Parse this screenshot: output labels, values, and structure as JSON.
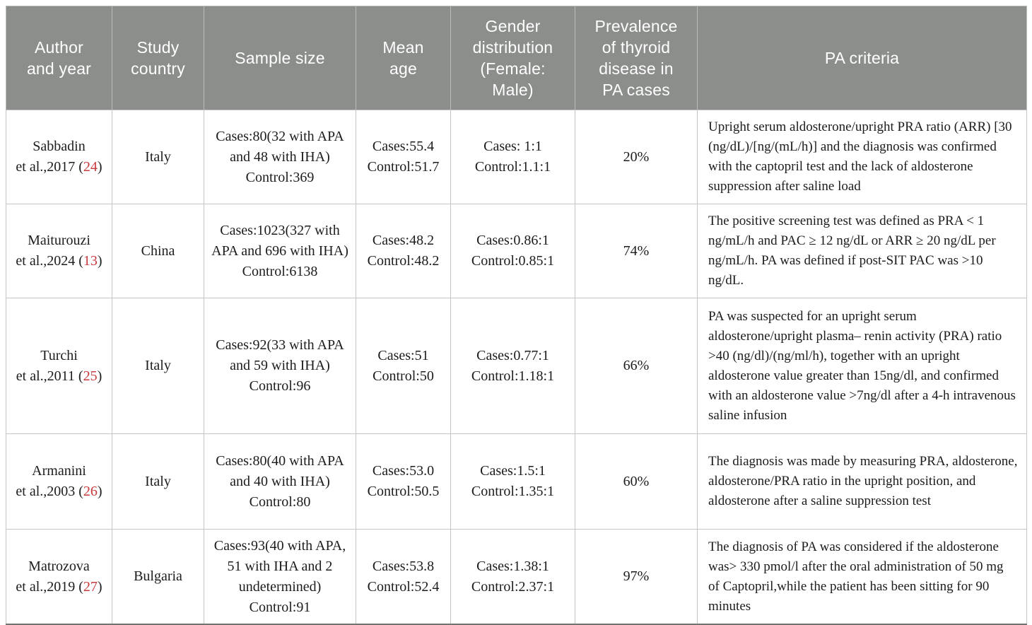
{
  "colors": {
    "header_background": "#8b8e8b",
    "header_text": "#ffffff",
    "reference_red": "#c83a3c",
    "body_text": "#1c1c1c",
    "cell_border": "#c3c6c3"
  },
  "table": {
    "columns": [
      {
        "id": "author-and-year",
        "label": "Author and year",
        "lines": [
          "Author",
          "and year"
        ]
      },
      {
        "id": "study-country",
        "label": "Study country",
        "lines": [
          "Study",
          "country"
        ]
      },
      {
        "id": "sample-size",
        "label": "Sample size",
        "lines": [
          "Sample size"
        ]
      },
      {
        "id": "mean-age",
        "label": "Mean age",
        "lines": [
          "Mean",
          "age"
        ]
      },
      {
        "id": "gender-distribution",
        "label": "Gender distribution (Female: Male)",
        "lines": [
          "Gender",
          "distribution",
          "(Female:",
          "Male)"
        ]
      },
      {
        "id": "prevalence",
        "label": "Prevalence of thyroid disease in PA cases",
        "lines": [
          "Prevalence",
          "of thyroid",
          "disease in",
          "PA cases"
        ]
      },
      {
        "id": "pa-criteria",
        "label": "PA criteria",
        "lines": [
          "PA criteria"
        ]
      }
    ],
    "rows": [
      {
        "author_name": "Sabbadin",
        "author_line2_prefix": "et al.,2017 (",
        "ref_number": "24",
        "author_line2_suffix": ")",
        "country": "Italy",
        "sample_size": [
          "Cases:80(32 with APA and 48 with IHA)",
          "Control:369"
        ],
        "mean_age": [
          "Cases:55.4",
          "Control:51.7"
        ],
        "gender": [
          "Cases: 1:1",
          "Control:1.1:1"
        ],
        "prevalence": "20%",
        "criteria": "Upright serum aldosterone/upright PRA ratio (ARR) [30 (ng/dL)/[ng/(mL/h)] and the diagnosis was confirmed with the captopril test and the lack of aldosterone suppression after saline load"
      },
      {
        "author_name": "Maiturouzi",
        "author_line2_prefix": "et al.,2024 (",
        "ref_number": "13",
        "author_line2_suffix": ")",
        "country": "China",
        "sample_size": [
          "Cases:1023(327 with APA and 696 with IHA)",
          "Control:6138"
        ],
        "mean_age": [
          "Cases:48.2",
          "Control:48.2"
        ],
        "gender": [
          "Cases:0.86:1",
          "Control:0.85:1"
        ],
        "prevalence": "74%",
        "criteria": "The positive screening test was defined as PRA < 1 ng/mL/h and PAC ≥ 12 ng/dL or ARR ≥ 20 ng/dL per ng/mL/h. PA was defined if post-SIT PAC was >10 ng/dL."
      },
      {
        "author_name": "Turchi",
        "author_line2_prefix": "et al.,2011 (",
        "ref_number": "25",
        "author_line2_suffix": ")",
        "country": "Italy",
        "sample_size": [
          "Cases:92(33 with APA and 59 with IHA)",
          "Control:96"
        ],
        "mean_age": [
          "Cases:51",
          "Control:50"
        ],
        "gender": [
          "Cases:0.77:1",
          "Control:1.18:1"
        ],
        "prevalence": "66%",
        "criteria": "PA was suspected for an upright serum aldosterone/upright plasma– renin activity (PRA) ratio >40 (ng/dl)/(ng/ml/h), together with an upright aldosterone value greater than 15ng/dl, and confirmed with an aldosterone value >7ng/dl after a 4-h intravenous saline infusion"
      },
      {
        "author_name": "Armanini",
        "author_line2_prefix": "et al.,2003 (",
        "ref_number": "26",
        "author_line2_suffix": ")",
        "country": "Italy",
        "sample_size": [
          "Cases:80(40 with APA and 40 with IHA)",
          "Control:80"
        ],
        "mean_age": [
          "Cases:53.0",
          "Control:50.5"
        ],
        "gender": [
          "Cases:1.5:1",
          "Control:1.35:1"
        ],
        "prevalence": "60%",
        "criteria": "The diagnosis was made by measuring PRA, aldosterone, aldosterone/PRA ratio in the upright position, and aldosterone after a saline suppression test"
      },
      {
        "author_name": "Matrozova",
        "author_line2_prefix": "et al.,2019 (",
        "ref_number": "27",
        "author_line2_suffix": ")",
        "country": "Bulgaria",
        "sample_size": [
          "Cases:93(40 with APA, 51 with IHA and 2 undetermined)",
          "Control:91"
        ],
        "mean_age": [
          "Cases:53.8",
          "Control:52.4"
        ],
        "gender": [
          "Cases:1.38:1",
          "Control:2.37:1"
        ],
        "prevalence": "97%",
        "criteria": "The diagnosis of PA was considered if the aldosterone was> 330 pmol/l after the oral administration of 50 mg of Captopril,while the patient has been sitting for 90 minutes"
      }
    ]
  }
}
